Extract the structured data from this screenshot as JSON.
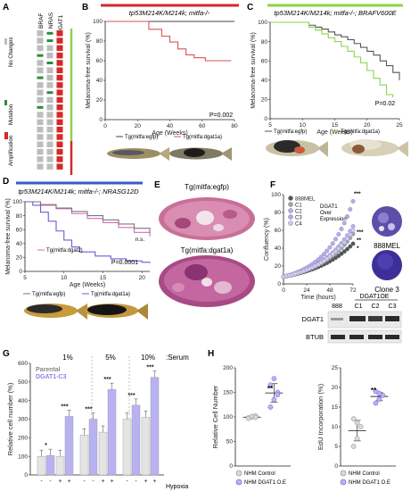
{
  "panels": {
    "A": {
      "letter": "A",
      "columns": [
        "BRAF",
        "NRAS",
        "DGAT1"
      ],
      "legend": [
        "No Changes",
        "Mutation",
        "Amplification"
      ],
      "colors": {
        "none": "#bdbdbd",
        "mutation": "#2e8b3a",
        "amplification": "#d62828",
        "bar_green": "#8bd44a",
        "bar_red": "#d62828"
      },
      "rows": [
        [
          "none",
          "mutation",
          "amplification"
        ],
        [
          "none",
          "mutation",
          "amplification"
        ],
        [
          "none",
          "none",
          "amplification"
        ],
        [
          "mutation",
          "none",
          "amplification"
        ],
        [
          "none",
          "mutation",
          "amplification"
        ],
        [
          "none",
          "none",
          "amplification"
        ],
        [
          "mutation",
          "none",
          "amplification"
        ],
        [
          "none",
          "none",
          "amplification"
        ],
        [
          "none",
          "mutation",
          "amplification"
        ],
        [
          "none",
          "none",
          "amplification"
        ],
        [
          "mutation",
          "none",
          "amplification"
        ],
        [
          "none",
          "none",
          "amplification"
        ],
        [
          "none",
          "none",
          "amplification"
        ],
        [
          "none",
          "none",
          "amplification"
        ],
        [
          "none",
          "none",
          "amplification"
        ],
        [
          "none",
          "none",
          "amplification"
        ],
        [
          "none",
          "none",
          "amplification"
        ],
        [
          "none",
          "none",
          "amplification"
        ],
        [
          "none",
          "none",
          "amplification"
        ]
      ]
    },
    "B": {
      "letter": "B",
      "title": "tp53M214K/M214k; mitfa-/-",
      "ylabel": "Melanoma-free survival (%)",
      "xlabel": "Age (Weeks)",
      "pvalue": "P=0.002",
      "legend": [
        "Tg(mitfa:egfp)",
        "Tg(mitfa:dgat1a)"
      ]
    },
    "C": {
      "letter": "C",
      "title": "tp53M214K/M214k; mitfa-/-; BRAFV600E",
      "ylabel": "Melanoma-free survival (%)",
      "xlabel": "Age (Weeks)",
      "pvalue": "P=0.02",
      "legend": [
        "Tg(mitfa:egfp)",
        "Tg(mitfa:dgat1a)"
      ]
    },
    "D": {
      "letter": "D",
      "title": "tp53M214K/M214k; mitfa-/-; NRASG12D",
      "ylabel": "Melanoma-free survival (%)",
      "xlabel": "Age (Weeks)",
      "pvalue": "P=0.0001",
      "ns": "n.s.",
      "legend": [
        "Tg(mitfa:dgat2)",
        "Tg(mitfa:egfp)",
        "Tg(mitfa:dgat1a)"
      ]
    },
    "E": {
      "letter": "E",
      "label1": "Tg(mitfa:egfp)",
      "label2": "Tg(mitfa:dgat1a)"
    },
    "F": {
      "letter": "F",
      "ylabel": "Confluency (%)",
      "xlabel": "Time (hours)",
      "legend": [
        "888MEL",
        "C1",
        "C2",
        "C3",
        "C4"
      ],
      "legend_note": [
        "DGAT1",
        "Over",
        "Expression"
      ],
      "stars": [
        "***",
        "***",
        "**",
        "*"
      ],
      "well1": "888MEL",
      "well2": "Clone 3",
      "blot_header": "DGAT1OE",
      "blot_lanes": [
        "888",
        "C1",
        "C2",
        "C3"
      ],
      "blot_rows": [
        "DGAT1",
        "BTUB"
      ]
    },
    "G": {
      "letter": "G",
      "ylabel": "Relative cell number (%)",
      "serum_levels": [
        "1%",
        "5%",
        "10%"
      ],
      "serum_label": ":Serum",
      "legend": [
        "Parental",
        "DGAT1-C3"
      ],
      "hypoxia_signs": [
        "-",
        "-",
        "+",
        "+",
        "-",
        "-",
        "+",
        "+",
        "-",
        "-",
        "+",
        "+"
      ],
      "hypoxia_label": "Hypoxia",
      "stars": [
        "*",
        "***",
        "***",
        "***",
        "***",
        "***"
      ]
    },
    "H": {
      "letter": "H",
      "ylabel1": "Relative Cell Number",
      "ylabel2": "EdU Incorporation (%)",
      "stars": "**",
      "legend": [
        "NHM Control",
        "NHM DGAT1 O.E"
      ]
    }
  },
  "chart_data": [
    {
      "type": "line",
      "title": "tp53M214K/M214k; mitfa-/-",
      "xlabel": "Age (Weeks)",
      "ylabel": "Melanoma-free survival (%)",
      "xlim": [
        0,
        80
      ],
      "ylim": [
        0,
        100
      ],
      "xticks": [
        0,
        20,
        40,
        60,
        80
      ],
      "yticks": [
        0,
        20,
        40,
        60,
        80,
        100
      ],
      "series": [
        {
          "name": "Tg(mitfa:egfp)",
          "color": "#444444",
          "x": [
            0,
            80
          ],
          "y": [
            100,
            100
          ]
        },
        {
          "name": "Tg(mitfa:dgat1a)",
          "color": "#d9534f",
          "x": [
            0,
            27,
            27,
            35,
            35,
            40,
            40,
            45,
            45,
            50,
            50,
            55,
            55,
            62,
            62,
            65,
            65,
            78
          ],
          "y": [
            100,
            100,
            92,
            92,
            85,
            85,
            79,
            79,
            72,
            72,
            66,
            66,
            63,
            63,
            60,
            60,
            60,
            60
          ]
        }
      ]
    },
    {
      "type": "line",
      "title": "tp53M214K/M214k; mitfa-/-; BRAFV600E",
      "xlabel": "Age (Weeks)",
      "ylabel": "Melanoma-free survival (%)",
      "xlim": [
        5,
        25
      ],
      "ylim": [
        0,
        100
      ],
      "xticks": [
        5,
        10,
        15,
        20,
        25
      ],
      "yticks": [
        0,
        20,
        40,
        60,
        80,
        100
      ],
      "series": [
        {
          "name": "Tg(mitfa:egfp)",
          "color": "#555555",
          "x": [
            5,
            10,
            11,
            12,
            13,
            14,
            15,
            16,
            17,
            18,
            19,
            20,
            21,
            22,
            23,
            24,
            25
          ],
          "y": [
            100,
            100,
            97,
            95,
            93,
            90,
            87,
            85,
            82,
            78,
            74,
            70,
            66,
            60,
            55,
            48,
            40
          ]
        },
        {
          "name": "Tg(mitfa:dgat1a)",
          "color": "#8bd44a",
          "x": [
            5,
            10,
            11,
            12,
            13,
            14,
            15,
            16,
            17,
            18,
            19,
            20,
            21,
            22,
            23,
            24
          ],
          "y": [
            100,
            100,
            95,
            92,
            88,
            84,
            80,
            75,
            70,
            64,
            58,
            50,
            42,
            35,
            25,
            22
          ]
        }
      ]
    },
    {
      "type": "line",
      "title": "tp53M214K/M214k; mitfa-/-; NRASG12D",
      "xlabel": "Age (Weeks)",
      "ylabel": "Melanoma-free survival (%)",
      "xlim": [
        5,
        21
      ],
      "ylim": [
        0,
        100
      ],
      "xticks": [
        5,
        10,
        15,
        20
      ],
      "yticks": [
        0,
        20,
        40,
        60,
        80,
        100
      ],
      "series": [
        {
          "name": "Tg(mitfa:dgat2)",
          "color": "#d36ac2",
          "x": [
            5,
            7,
            9,
            11,
            13,
            15,
            17,
            19,
            21
          ],
          "y": [
            100,
            95,
            90,
            83,
            76,
            70,
            63,
            56,
            50
          ]
        },
        {
          "name": "Tg(mitfa:egfp)",
          "color": "#777777",
          "x": [
            5,
            7,
            9,
            11,
            13,
            15,
            17,
            19,
            21
          ],
          "y": [
            100,
            96,
            91,
            86,
            80,
            74,
            68,
            62,
            55
          ]
        },
        {
          "name": "Tg(mitfa:dgat1a)",
          "color": "#6b5bd6",
          "x": [
            5,
            6,
            7,
            8,
            9,
            10,
            11,
            12,
            14,
            16,
            18,
            20,
            21
          ],
          "y": [
            100,
            95,
            85,
            72,
            58,
            45,
            35,
            28,
            22,
            18,
            15,
            13,
            12
          ]
        }
      ]
    },
    {
      "type": "scatter",
      "xlabel": "Time (hours)",
      "ylabel": "Confluency (%)",
      "xlim": [
        0,
        72
      ],
      "ylim": [
        0,
        100
      ],
      "xticks": [
        0,
        24,
        48,
        72
      ],
      "yticks": [
        0,
        20,
        40,
        60,
        80,
        100
      ],
      "series": [
        {
          "name": "888MEL",
          "color": "#555555",
          "k": 0.024
        },
        {
          "name": "C1",
          "color": "#9aa8b8",
          "k": 0.027
        },
        {
          "name": "C2",
          "color": "#b9b1f2",
          "k": 0.029
        },
        {
          "name": "C3",
          "color": "#b6a9f0",
          "k": 0.034
        },
        {
          "name": "C4",
          "color": "#cfcaf6",
          "k": 0.028
        }
      ]
    },
    {
      "type": "bar",
      "ylabel": "Relative cell number (%)",
      "ylim": [
        0,
        600
      ],
      "yticks": [
        0,
        100,
        200,
        300,
        400,
        500,
        600
      ],
      "categories": [
        "1% -",
        "1% +",
        "5% -",
        "5% +",
        "10% -",
        "10% +"
      ],
      "series": [
        {
          "name": "Parental",
          "color": "#e4e4e4",
          "values": [
            100,
            100,
            215,
            230,
            300,
            310
          ]
        },
        {
          "name": "DGAT1-C3",
          "color": "#b9b2f2",
          "values": [
            105,
            315,
            300,
            460,
            375,
            525
          ]
        }
      ]
    },
    {
      "type": "scatter",
      "ylabel": "Relative Cell Number",
      "ylim": [
        0,
        200
      ],
      "yticks": [
        0,
        50,
        100,
        150,
        200
      ],
      "series": [
        {
          "name": "NHM Control",
          "color": "#d9d9d9",
          "values": [
            98,
            100,
            102,
            97,
            101,
            99
          ]
        },
        {
          "name": "NHM DGAT1 O.E",
          "color": "#b9b2f2",
          "values": [
            120,
            135,
            150,
            165,
            178,
            145
          ]
        }
      ]
    },
    {
      "type": "scatter",
      "ylabel": "EdU Incorporation (%)",
      "ylim": [
        0,
        25
      ],
      "yticks": [
        0,
        5,
        10,
        15,
        20,
        25
      ],
      "series": [
        {
          "name": "NHM Control",
          "color": "#d9d9d9",
          "values": [
            5,
            7,
            10,
            12,
            11
          ]
        },
        {
          "name": "NHM DGAT1 O.E",
          "color": "#b9b2f2",
          "values": [
            16,
            17,
            18,
            19,
            18.5
          ]
        }
      ]
    }
  ]
}
